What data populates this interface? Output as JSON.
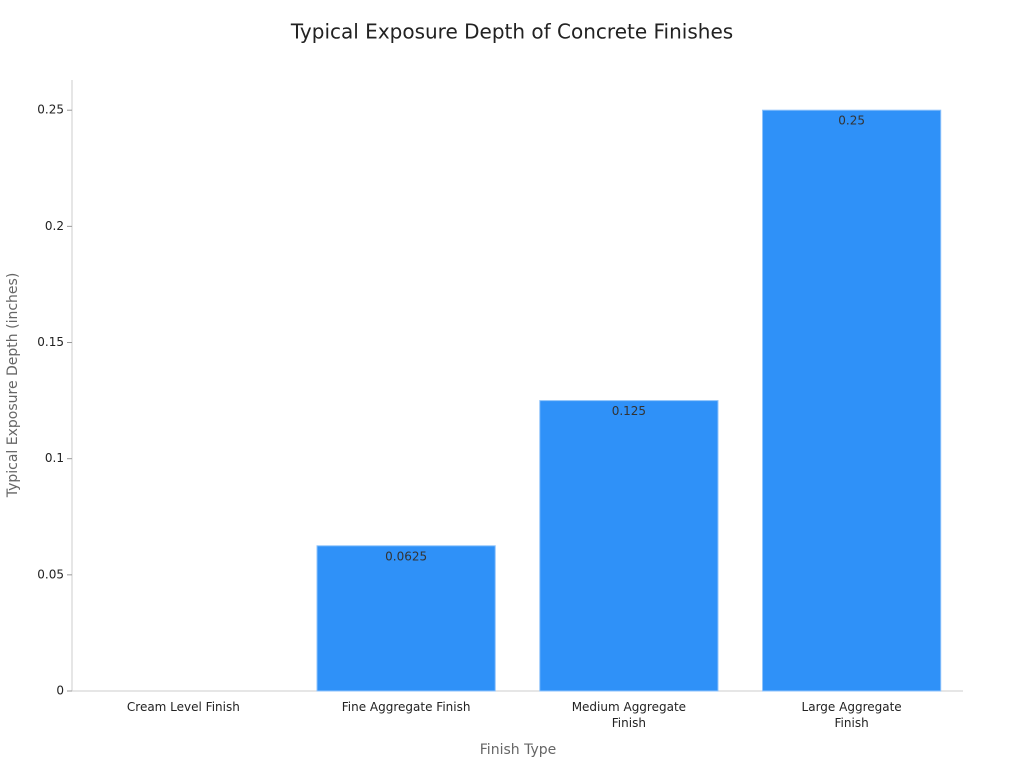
{
  "chart_data": {
    "type": "bar",
    "title": "Typical Exposure Depth of Concrete Finishes",
    "x_label": "Finish Type",
    "y_label": "Typical Exposure Depth (inches)",
    "categories": [
      "Cream Level Finish",
      "Fine Aggregate Finish",
      "Medium Aggregate Finish",
      "Large Aggregate Finish"
    ],
    "values": [
      0,
      0.0625,
      0.125,
      0.25
    ],
    "color": "#2f91f8",
    "ylim": [
      0,
      0.263
    ],
    "yticks": [
      0,
      0.05,
      0.1,
      0.15,
      0.2,
      0.25
    ],
    "grid": false
  }
}
